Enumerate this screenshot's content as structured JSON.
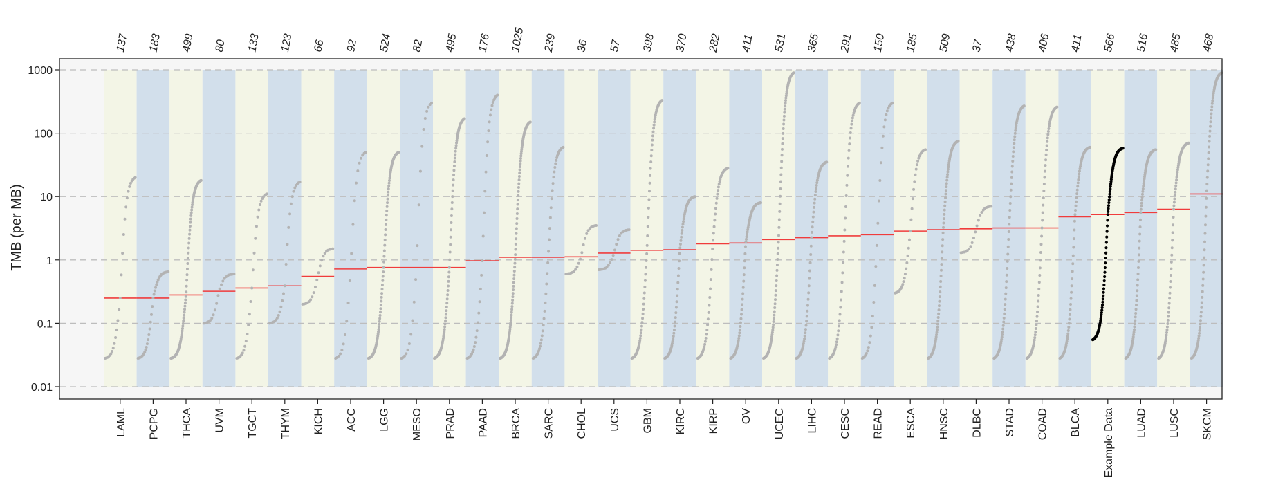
{
  "chart_data": {
    "type": "scatter",
    "subtype": "sorted-dot-plot (TMB by cancer type)",
    "title": "",
    "xlabel": "",
    "ylabel": "TMB (per MB)",
    "yscale": "log",
    "ylim": [
      0.01,
      1000
    ],
    "yticks": [
      0.01,
      0.1,
      1,
      10,
      100,
      1000
    ],
    "ytick_labels": [
      "0.01",
      "0.1",
      "1",
      "10",
      "100",
      "1000"
    ],
    "grid": "horizontal dashed at major y ticks",
    "legend": "none",
    "colors": {
      "band_a": "#f3f5e6",
      "band_b": "#d2dfeb",
      "plot_background": "#f6f6f6",
      "points": "#b3b3b3",
      "highlight_points": "#000000",
      "median_line": "#f03c3c",
      "grid": "#bdbdbd"
    },
    "highlight_category": "Example Data",
    "categories": [
      "LAML",
      "PCPG",
      "THCA",
      "UVM",
      "TGCT",
      "THYM",
      "KICH",
      "ACC",
      "LGG",
      "MESO",
      "PRAD",
      "PAAD",
      "BRCA",
      "SARC",
      "CHOL",
      "UCS",
      "GBM",
      "KIRC",
      "KIRP",
      "OV",
      "UCEC",
      "LIHC",
      "CESC",
      "READ",
      "ESCA",
      "HNSC",
      "DLBC",
      "STAD",
      "COAD",
      "BLCA",
      "Example Data",
      "LUAD",
      "LUSC",
      "SKCM"
    ],
    "sample_counts": [
      "137",
      "183",
      "499",
      "80",
      "133",
      "123",
      "66",
      "92",
      "524",
      "82",
      "495",
      "176",
      "1025",
      "239",
      "36",
      "57",
      "398",
      "370",
      "282",
      "411",
      "531",
      "365",
      "291",
      "150",
      "185",
      "509",
      "37",
      "438",
      "406",
      "411",
      "566",
      "516",
      "485",
      "468"
    ],
    "medians": [
      0.25,
      0.25,
      0.28,
      0.32,
      0.36,
      0.39,
      0.55,
      0.72,
      0.76,
      0.76,
      0.76,
      0.97,
      1.1,
      1.1,
      1.12,
      1.28,
      1.42,
      1.45,
      1.8,
      1.85,
      2.1,
      2.25,
      2.4,
      2.5,
      2.85,
      3.0,
      3.1,
      3.2,
      3.2,
      4.8,
      5.2,
      5.6,
      6.3,
      11.0
    ],
    "min_values": [
      0.028,
      0.028,
      0.028,
      0.1,
      0.028,
      0.1,
      0.2,
      0.028,
      0.028,
      0.028,
      0.028,
      0.028,
      0.028,
      0.028,
      0.6,
      0.7,
      0.028,
      0.028,
      0.028,
      0.028,
      0.028,
      0.028,
      0.028,
      0.028,
      0.3,
      0.028,
      1.3,
      0.028,
      0.028,
      0.028,
      0.055,
      0.028,
      0.028,
      0.028
    ],
    "max_values": [
      20,
      0.65,
      18,
      0.6,
      11,
      17,
      1.5,
      50,
      50,
      300,
      170,
      400,
      150,
      60,
      3.5,
      3,
      330,
      10,
      28,
      8,
      900,
      35,
      300,
      300,
      55,
      75,
      7,
      270,
      260,
      60,
      58,
      55,
      70,
      900
    ]
  }
}
